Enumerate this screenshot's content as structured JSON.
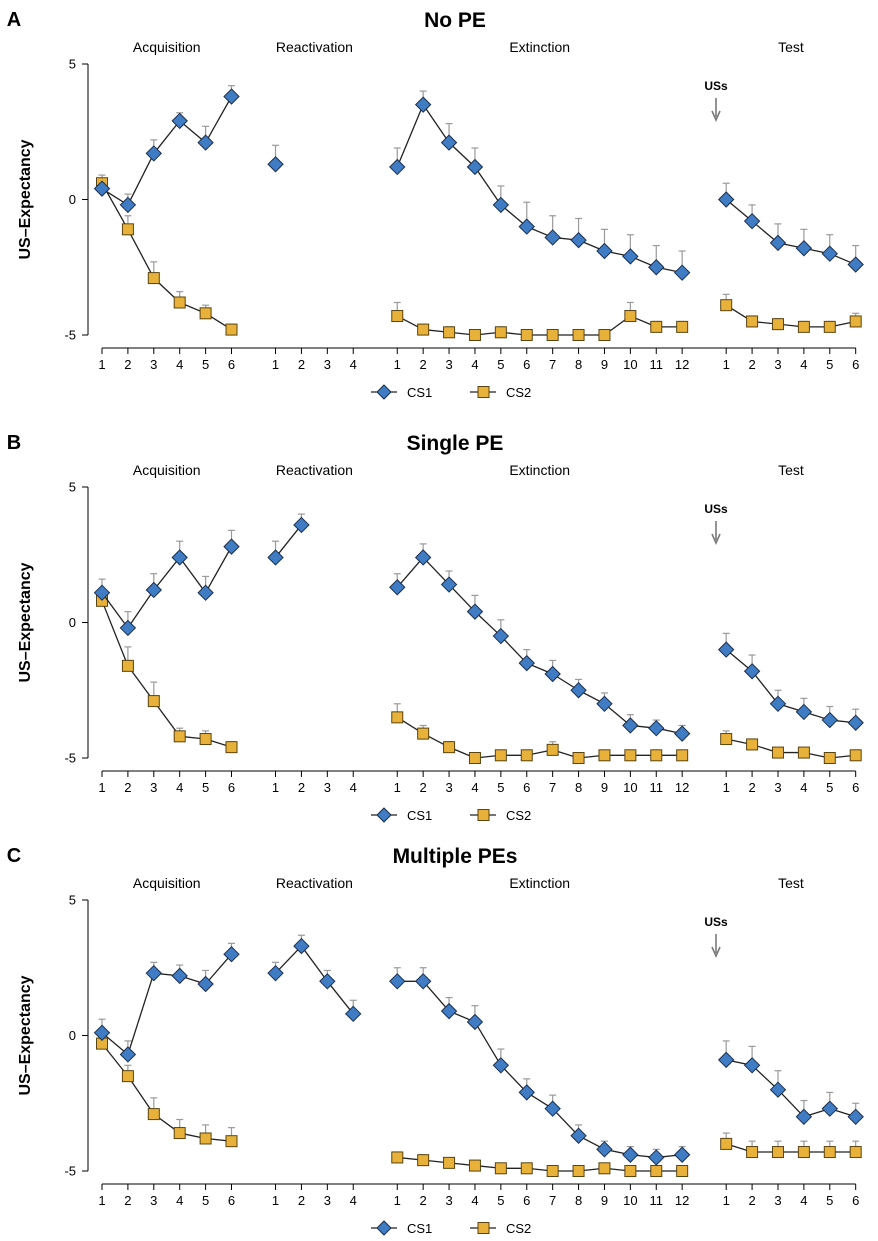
{
  "chart_data": [
    {
      "type": "line",
      "panel_letter": "A",
      "title": "No PE",
      "ylabel": "US–Expectancy",
      "ylim": [
        -5,
        5
      ],
      "yticks": [
        -5,
        0,
        5
      ],
      "us_marker": "USs",
      "legend": [
        "CS1",
        "CS2"
      ],
      "phases": [
        {
          "label": "Acquisition",
          "trials": [
            "1",
            "2",
            "3",
            "4",
            "5",
            "6"
          ],
          "CS1": [
            0.4,
            -0.2,
            1.7,
            2.9,
            2.1,
            3.8
          ],
          "CS1_err": [
            0.2,
            0.4,
            0.5,
            0.3,
            0.6,
            0.4
          ],
          "CS2": [
            0.6,
            -1.1,
            -2.9,
            -3.8,
            -4.2,
            -4.8
          ],
          "CS2_err": [
            0.3,
            0.5,
            0.6,
            0.4,
            0.3,
            0.2
          ]
        },
        {
          "label": "Reactivation",
          "trials": [
            "1",
            "2",
            "3",
            "4"
          ],
          "CS1": [
            1.3,
            null,
            null,
            null
          ],
          "CS1_err": [
            0.7,
            null,
            null,
            null
          ],
          "CS2": [
            null,
            null,
            null,
            null
          ],
          "CS2_err": [
            null,
            null,
            null,
            null
          ]
        },
        {
          "label": "Extinction",
          "trials": [
            "1",
            "2",
            "3",
            "4",
            "5",
            "6",
            "7",
            "8",
            "9",
            "10",
            "11",
            "12"
          ],
          "CS1": [
            1.2,
            3.5,
            2.1,
            1.2,
            -0.2,
            -1.0,
            -1.4,
            -1.5,
            -1.9,
            -2.1,
            -2.5,
            -2.7
          ],
          "CS1_err": [
            0.7,
            0.5,
            0.7,
            0.7,
            0.7,
            0.9,
            0.8,
            0.8,
            0.8,
            0.8,
            0.8,
            0.8
          ],
          "CS2": [
            -4.3,
            -4.8,
            -4.9,
            -5.0,
            -4.9,
            -5.0,
            -5.0,
            -5.0,
            -5.0,
            -4.3,
            -4.7,
            -4.7
          ],
          "CS2_err": [
            0.5,
            0.2,
            0.2,
            0.1,
            0.2,
            0.1,
            0.1,
            0.1,
            0.1,
            0.5,
            0.2,
            0.2
          ]
        },
        {
          "label": "Test",
          "trials": [
            "1",
            "2",
            "3",
            "4",
            "5",
            "6"
          ],
          "CS1": [
            0.0,
            -0.8,
            -1.6,
            -1.8,
            -2.0,
            -2.4
          ],
          "CS1_err": [
            0.6,
            0.6,
            0.7,
            0.7,
            0.7,
            0.7
          ],
          "CS2": [
            -3.9,
            -4.5,
            -4.6,
            -4.7,
            -4.7,
            -4.5
          ],
          "CS2_err": [
            0.4,
            0.2,
            0.2,
            0.2,
            0.2,
            0.3
          ]
        }
      ]
    },
    {
      "type": "line",
      "panel_letter": "B",
      "title": "Single PE",
      "ylabel": "US–Expectancy",
      "ylim": [
        -5,
        5
      ],
      "yticks": [
        -5,
        0,
        5
      ],
      "us_marker": "USs",
      "legend": [
        "CS1",
        "CS2"
      ],
      "phases": [
        {
          "label": "Acquisition",
          "trials": [
            "1",
            "2",
            "3",
            "4",
            "5",
            "6"
          ],
          "CS1": [
            1.1,
            -0.2,
            1.2,
            2.4,
            1.1,
            2.8
          ],
          "CS1_err": [
            0.5,
            0.6,
            0.6,
            0.6,
            0.6,
            0.6
          ],
          "CS2": [
            0.8,
            -1.6,
            -2.9,
            -4.2,
            -4.3,
            -4.6
          ],
          "CS2_err": [
            0.3,
            0.7,
            0.7,
            0.3,
            0.3,
            0.2
          ]
        },
        {
          "label": "Reactivation",
          "trials": [
            "1",
            "2",
            "3",
            "4"
          ],
          "CS1": [
            2.4,
            3.6,
            null,
            null
          ],
          "CS1_err": [
            0.6,
            0.4,
            null,
            null
          ],
          "CS2": [
            null,
            null,
            null,
            null
          ],
          "CS2_err": [
            null,
            null,
            null,
            null
          ]
        },
        {
          "label": "Extinction",
          "trials": [
            "1",
            "2",
            "3",
            "4",
            "5",
            "6",
            "7",
            "8",
            "9",
            "10",
            "11",
            "12"
          ],
          "CS1": [
            1.3,
            2.4,
            1.4,
            0.4,
            -0.5,
            -1.5,
            -1.9,
            -2.5,
            -3.0,
            -3.8,
            -3.9,
            -4.1
          ],
          "CS1_err": [
            0.5,
            0.5,
            0.5,
            0.6,
            0.6,
            0.5,
            0.5,
            0.4,
            0.4,
            0.4,
            0.3,
            0.3
          ],
          "CS2": [
            -3.5,
            -4.1,
            -4.6,
            -5.0,
            -4.9,
            -4.9,
            -4.7,
            -5.0,
            -4.9,
            -4.9,
            -4.9,
            -4.9
          ],
          "CS2_err": [
            0.5,
            0.3,
            0.2,
            0.1,
            0.1,
            0.1,
            0.3,
            0.1,
            0.1,
            0.1,
            0.1,
            0.1
          ]
        },
        {
          "label": "Test",
          "trials": [
            "1",
            "2",
            "3",
            "4",
            "5",
            "6"
          ],
          "CS1": [
            -1.0,
            -1.8,
            -3.0,
            -3.3,
            -3.6,
            -3.7
          ],
          "CS1_err": [
            0.6,
            0.6,
            0.5,
            0.5,
            0.5,
            0.5
          ],
          "CS2": [
            -4.3,
            -4.5,
            -4.8,
            -4.8,
            -5.0,
            -4.9
          ],
          "CS2_err": [
            0.3,
            0.2,
            0.1,
            0.1,
            0.1,
            0.1
          ]
        }
      ]
    },
    {
      "type": "line",
      "panel_letter": "C",
      "title": "Multiple PEs",
      "ylabel": "US–Expectancy",
      "ylim": [
        -5,
        5
      ],
      "yticks": [
        -5,
        0,
        5
      ],
      "us_marker": "USs",
      "legend": [
        "CS1",
        "CS2"
      ],
      "phases": [
        {
          "label": "Acquisition",
          "trials": [
            "1",
            "2",
            "3",
            "4",
            "5",
            "6"
          ],
          "CS1": [
            0.1,
            -0.7,
            2.3,
            2.2,
            1.9,
            3.0
          ],
          "CS1_err": [
            0.5,
            0.5,
            0.4,
            0.4,
            0.5,
            0.4
          ],
          "CS2": [
            -0.3,
            -1.5,
            -2.9,
            -3.6,
            -3.8,
            -3.9
          ],
          "CS2_err": [
            0.4,
            0.4,
            0.6,
            0.5,
            0.5,
            0.5
          ]
        },
        {
          "label": "Reactivation",
          "trials": [
            "1",
            "2",
            "3",
            "4"
          ],
          "CS1": [
            2.3,
            3.3,
            2.0,
            0.8
          ],
          "CS1_err": [
            0.4,
            0.4,
            0.4,
            0.5
          ],
          "CS2": [
            null,
            null,
            null,
            null
          ],
          "CS2_err": [
            null,
            null,
            null,
            null
          ]
        },
        {
          "label": "Extinction",
          "trials": [
            "1",
            "2",
            "3",
            "4",
            "5",
            "6",
            "7",
            "8",
            "9",
            "10",
            "11",
            "12"
          ],
          "CS1": [
            2.0,
            2.0,
            0.9,
            0.5,
            -1.1,
            -2.1,
            -2.7,
            -3.7,
            -4.2,
            -4.4,
            -4.5,
            -4.4
          ],
          "CS1_err": [
            0.5,
            0.5,
            0.5,
            0.6,
            0.6,
            0.5,
            0.5,
            0.4,
            0.3,
            0.3,
            0.3,
            0.3
          ],
          "CS2": [
            -4.5,
            -4.6,
            -4.7,
            -4.8,
            -4.9,
            -4.9,
            -5.0,
            -5.0,
            -4.9,
            -5.0,
            -5.0,
            -5.0
          ],
          "CS2_err": [
            0.2,
            0.2,
            0.1,
            0.1,
            0.1,
            0.1,
            0.1,
            0.1,
            0.1,
            0.1,
            0.1,
            0.1
          ]
        },
        {
          "label": "Test",
          "trials": [
            "1",
            "2",
            "3",
            "4",
            "5",
            "6"
          ],
          "CS1": [
            -0.9,
            -1.1,
            -2.0,
            -3.0,
            -2.7,
            -3.0
          ],
          "CS1_err": [
            0.7,
            0.7,
            0.7,
            0.6,
            0.6,
            0.5
          ],
          "CS2": [
            -4.0,
            -4.3,
            -4.3,
            -4.3,
            -4.3,
            -4.3
          ],
          "CS2_err": [
            0.4,
            0.4,
            0.4,
            0.4,
            0.4,
            0.4
          ]
        }
      ]
    }
  ],
  "colors": {
    "cs1_fill": "#3f7cc4",
    "cs2_fill": "#e8b13a",
    "line": "#222222",
    "error_bar": "#9a9a9a",
    "us_arrow": "#7a7a7a"
  }
}
